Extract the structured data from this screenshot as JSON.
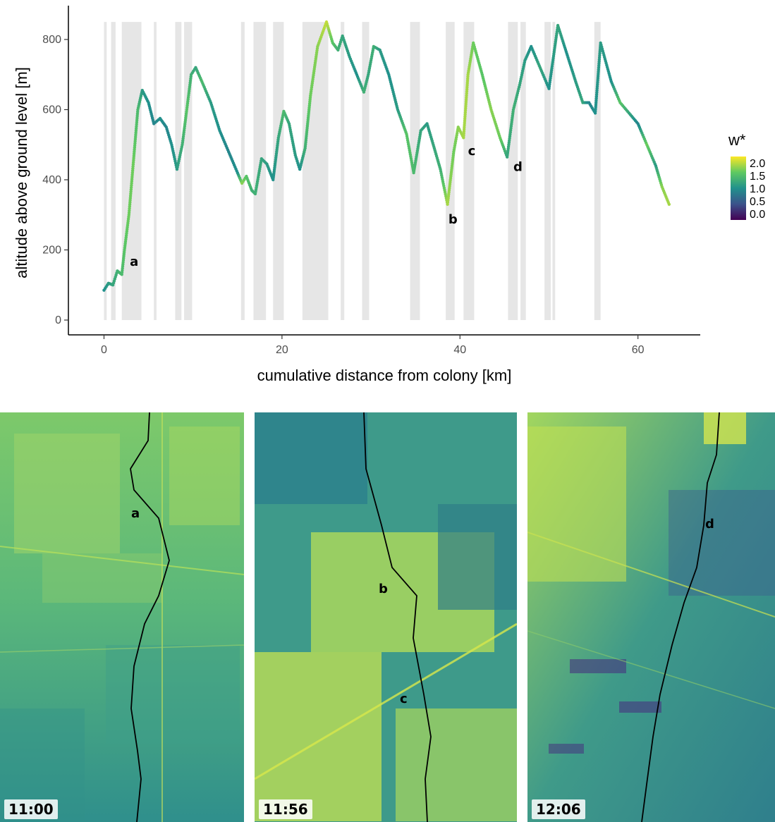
{
  "chart_data": {
    "type": "scatter",
    "xlabel": "cumulative distance from colony [km]",
    "ylabel": "altitude above ground level [m]",
    "xlim": [
      -4,
      67
    ],
    "ylim": [
      0,
      880
    ],
    "x_ticks": [
      0,
      20,
      40,
      60
    ],
    "y_ticks": [
      0,
      200,
      400,
      600,
      800
    ],
    "grid": false,
    "legend": {
      "title": "w*",
      "position": "right",
      "ticks": [
        "2.0",
        "1.5",
        "1.0",
        "0.5",
        "0.0"
      ],
      "range": [
        0,
        2.2
      ]
    },
    "shaded_bands": [
      [
        0,
        0.3
      ],
      [
        0.8,
        1.3
      ],
      [
        2,
        4.2
      ],
      [
        5.6,
        5.9
      ],
      [
        8,
        8.7
      ],
      [
        9,
        9.9
      ],
      [
        15.4,
        15.8
      ],
      [
        16.8,
        18.2
      ],
      [
        19,
        20.2
      ],
      [
        22.3,
        25.2
      ],
      [
        26.6,
        27
      ],
      [
        29,
        29.8
      ],
      [
        34.4,
        35.5
      ],
      [
        38.4,
        39.4
      ],
      [
        40.4,
        41.6
      ],
      [
        45.4,
        46.5
      ],
      [
        46.8,
        47.4
      ],
      [
        49.5,
        50.2
      ],
      [
        50.4,
        50.7
      ],
      [
        55.1,
        55.8
      ]
    ],
    "points": [
      [
        0.0,
        85,
        1.1
      ],
      [
        0.5,
        105,
        1.2
      ],
      [
        1.0,
        100,
        1.3
      ],
      [
        1.5,
        140,
        1.4
      ],
      [
        2.0,
        130,
        1.5
      ],
      [
        2.3,
        200,
        1.6
      ],
      [
        2.8,
        300,
        1.7
      ],
      [
        3.3,
        450,
        1.7
      ],
      [
        3.8,
        600,
        1.5
      ],
      [
        4.3,
        655,
        1.2
      ],
      [
        5.0,
        620,
        1.1
      ],
      [
        5.6,
        560,
        1.0
      ],
      [
        6.3,
        575,
        1.1
      ],
      [
        7.0,
        550,
        1.0
      ],
      [
        7.6,
        500,
        1.1
      ],
      [
        8.2,
        430,
        1.2
      ],
      [
        8.8,
        500,
        1.4
      ],
      [
        9.3,
        600,
        1.6
      ],
      [
        9.8,
        700,
        1.4
      ],
      [
        10.3,
        720,
        1.3
      ],
      [
        11.0,
        680,
        1.5
      ],
      [
        12.0,
        620,
        1.2
      ],
      [
        13.0,
        540,
        1.1
      ],
      [
        14.0,
        480,
        1.0
      ],
      [
        15.0,
        420,
        1.1
      ],
      [
        15.5,
        390,
        1.8
      ],
      [
        16.0,
        410,
        1.6
      ],
      [
        16.6,
        370,
        1.4
      ],
      [
        17.0,
        360,
        1.4
      ],
      [
        17.7,
        460,
        1.3
      ],
      [
        18.3,
        445,
        1.2
      ],
      [
        19.0,
        400,
        1.1
      ],
      [
        19.6,
        520,
        1.3
      ],
      [
        20.2,
        595,
        1.5
      ],
      [
        20.8,
        560,
        1.3
      ],
      [
        21.5,
        470,
        1.2
      ],
      [
        22.0,
        430,
        1.1
      ],
      [
        22.6,
        490,
        1.4
      ],
      [
        23.2,
        640,
        1.7
      ],
      [
        24.0,
        780,
        1.8
      ],
      [
        25.0,
        850,
        2.0
      ],
      [
        25.7,
        790,
        1.6
      ],
      [
        26.3,
        770,
        1.4
      ],
      [
        26.8,
        810,
        1.3
      ],
      [
        27.6,
        750,
        1.2
      ],
      [
        28.4,
        700,
        1.1
      ],
      [
        29.2,
        650,
        1.4
      ],
      [
        29.7,
        700,
        1.3
      ],
      [
        30.3,
        780,
        1.4
      ],
      [
        31.0,
        770,
        1.2
      ],
      [
        32.0,
        700,
        1.1
      ],
      [
        33.0,
        600,
        1.2
      ],
      [
        34.0,
        530,
        1.6
      ],
      [
        34.8,
        420,
        1.5
      ],
      [
        35.6,
        540,
        1.3
      ],
      [
        36.3,
        560,
        1.2
      ],
      [
        37.0,
        500,
        1.3
      ],
      [
        37.8,
        430,
        1.4
      ],
      [
        38.6,
        330,
        1.9
      ],
      [
        39.3,
        480,
        1.7
      ],
      [
        39.8,
        550,
        1.8
      ],
      [
        40.4,
        520,
        1.9
      ],
      [
        40.9,
        700,
        1.9
      ],
      [
        41.5,
        790,
        1.7
      ],
      [
        42.5,
        700,
        1.6
      ],
      [
        43.5,
        600,
        1.8
      ],
      [
        44.5,
        520,
        1.7
      ],
      [
        45.3,
        465,
        1.3
      ],
      [
        46.0,
        600,
        1.4
      ],
      [
        46.7,
        670,
        1.3
      ],
      [
        47.3,
        740,
        1.2
      ],
      [
        48.0,
        780,
        1.1
      ],
      [
        49.0,
        720,
        1.3
      ],
      [
        50.0,
        660,
        1.1
      ],
      [
        51.0,
        840,
        1.3
      ],
      [
        52.0,
        760,
        1.1
      ],
      [
        53.0,
        680,
        1.2
      ],
      [
        53.8,
        620,
        1.3
      ],
      [
        54.5,
        620,
        1.0
      ],
      [
        55.2,
        590,
        1.1
      ],
      [
        55.8,
        790,
        1.2
      ],
      [
        57.0,
        680,
        1.1
      ],
      [
        58.0,
        620,
        1.6
      ],
      [
        59.0,
        590,
        1.3
      ],
      [
        60.0,
        560,
        1.0
      ],
      [
        61.0,
        500,
        1.7
      ],
      [
        62.0,
        440,
        1.2
      ],
      [
        62.7,
        380,
        1.8
      ],
      [
        63.5,
        330,
        1.9
      ]
    ],
    "annotations": [
      {
        "label": "a",
        "x": 2.9,
        "y": 155
      },
      {
        "label": "b",
        "x": 38.7,
        "y": 275
      },
      {
        "label": "c",
        "x": 40.9,
        "y": 470
      },
      {
        "label": "d",
        "x": 46.0,
        "y": 425
      }
    ]
  },
  "maps": [
    {
      "time": "11:00",
      "label": "a"
    },
    {
      "time": "11:56",
      "label": "b",
      "label2": "c"
    },
    {
      "time": "12:06",
      "label": "d"
    }
  ]
}
